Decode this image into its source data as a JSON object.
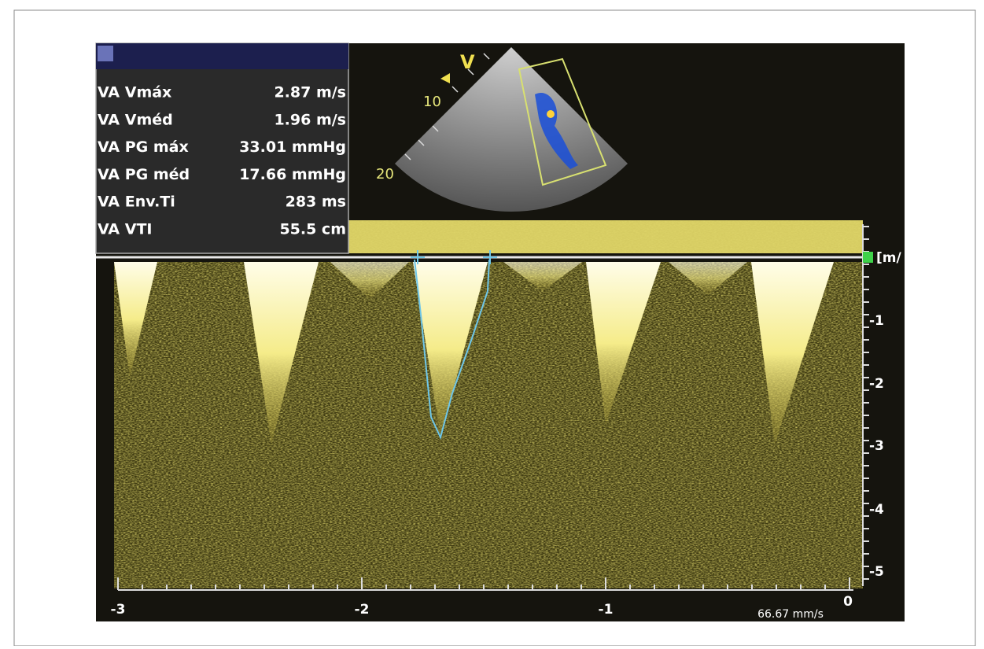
{
  "measurements": {
    "rows": [
      {
        "label": "VA Vmáx",
        "value": "2.87 m/s"
      },
      {
        "label": "VA Vméd",
        "value": "1.96 m/s"
      },
      {
        "label": "VA PG máx",
        "value": "33.01 mmHg"
      },
      {
        "label": "VA PG méd",
        "value": "17.66 mmHg"
      },
      {
        "label": "VA Env.Ti",
        "value": "283 ms"
      },
      {
        "label": "VA VTI",
        "value": "55.5 cm"
      }
    ]
  },
  "sector": {
    "labels": [
      "V",
      "10",
      "20"
    ]
  },
  "doppler": {
    "unit": "[m/",
    "y_labels": [
      "-1",
      "-2",
      "-3",
      "-4",
      "-5"
    ],
    "x_labels": [
      "-3",
      "-2",
      "-1",
      "0"
    ],
    "sweep_speed": "66.67 mm/s"
  }
}
